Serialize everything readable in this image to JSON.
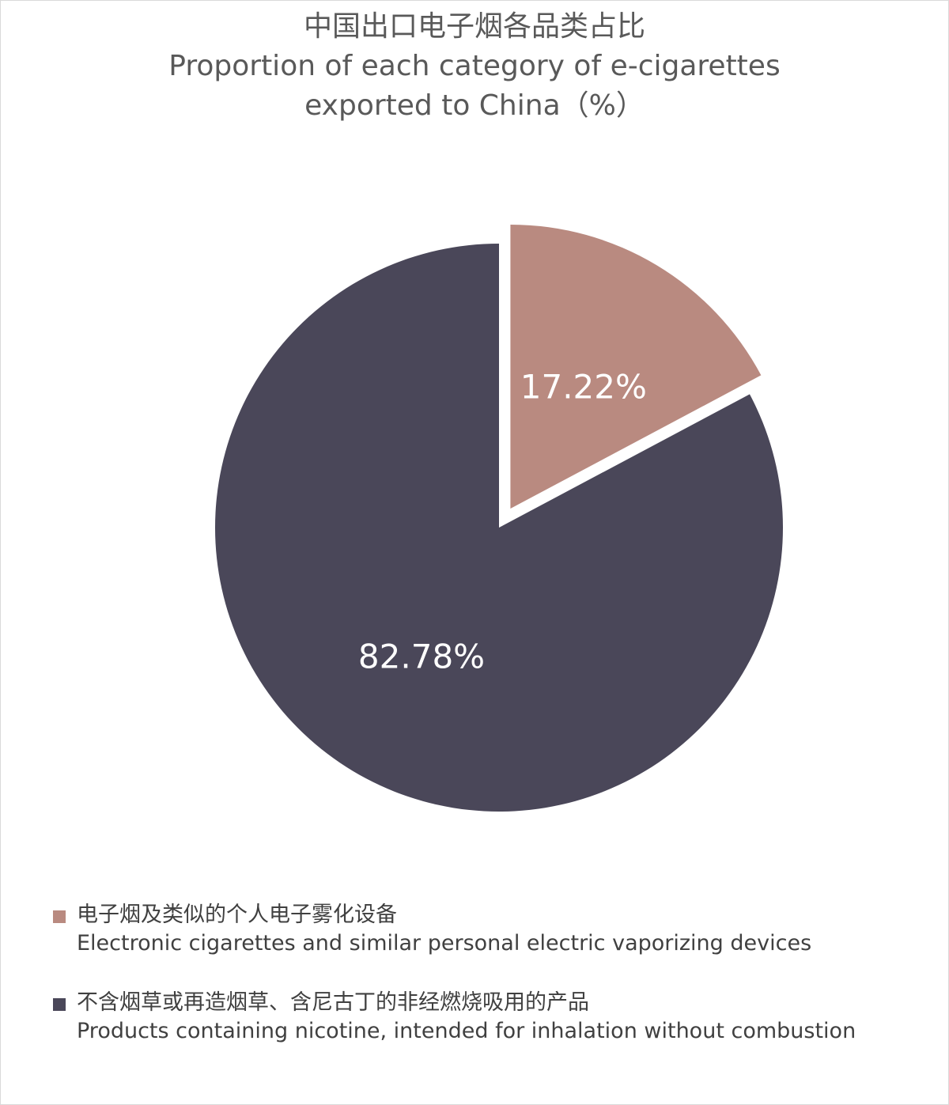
{
  "chart_data": {
    "type": "pie",
    "title_lines": [
      "中国出口电子烟各品类占比",
      "Proportion of each category of e-cigarettes",
      "exported to China（%）"
    ],
    "slices": [
      {
        "label_cn": "电子烟及类似的个人电子雾化设备",
        "label_en": "Electronic cigarettes and similar personal electric vaporizing devices",
        "value": 17.22,
        "value_label": "17.22%",
        "color": "#b98a80",
        "exploded": true
      },
      {
        "label_cn": "不含烟草或再造烟草、含尼古丁的非经燃烧吸用的产品",
        "label_en": "Products containing nicotine, intended for inhalation without combustion",
        "value": 82.78,
        "value_label": "82.78%",
        "color": "#4a4759",
        "exploded": false
      }
    ],
    "legend_position": "bottom-left"
  }
}
